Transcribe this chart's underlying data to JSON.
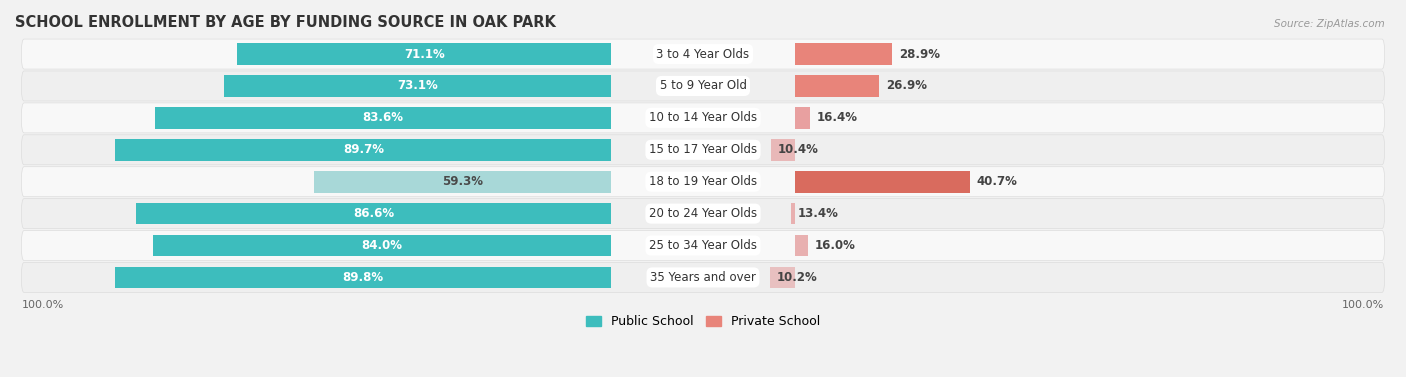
{
  "title": "SCHOOL ENROLLMENT BY AGE BY FUNDING SOURCE IN OAK PARK",
  "source": "Source: ZipAtlas.com",
  "categories": [
    "3 to 4 Year Olds",
    "5 to 9 Year Old",
    "10 to 14 Year Olds",
    "15 to 17 Year Olds",
    "18 to 19 Year Olds",
    "20 to 24 Year Olds",
    "25 to 34 Year Olds",
    "35 Years and over"
  ],
  "public_values": [
    71.1,
    73.1,
    83.6,
    89.7,
    59.3,
    86.6,
    84.0,
    89.8
  ],
  "private_values": [
    28.9,
    26.9,
    16.4,
    10.4,
    40.7,
    13.4,
    16.0,
    10.2
  ],
  "public_colors": [
    "#3dbdbd",
    "#3dbdbd",
    "#3dbdbd",
    "#3dbdbd",
    "#a8d8d8",
    "#3dbdbd",
    "#3dbdbd",
    "#3dbdbd"
  ],
  "private_colors": [
    "#e8847a",
    "#e8847a",
    "#e8a0a0",
    "#e8b8b8",
    "#d96b5e",
    "#e8b0b0",
    "#e8b0b0",
    "#e8c0c0"
  ],
  "bg_color": "#f2f2f2",
  "row_colors": [
    "#ffffff",
    "#f0f0f0",
    "#ffffff",
    "#f0f0f0",
    "#ffffff",
    "#f0f0f0",
    "#ffffff",
    "#f0f0f0"
  ],
  "legend_public_color": "#3dbdbd",
  "legend_private_color": "#e8847a",
  "axis_label_left": "100.0%",
  "axis_label_right": "100.0%",
  "title_fontsize": 10.5,
  "value_fontsize": 8.5,
  "category_fontsize": 8.5,
  "legend_fontsize": 9
}
